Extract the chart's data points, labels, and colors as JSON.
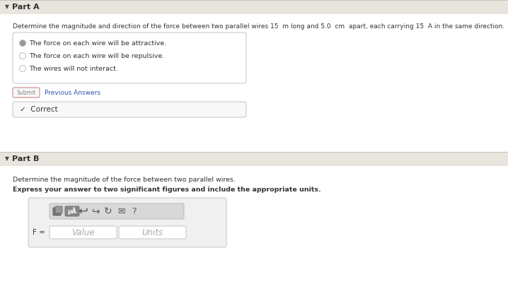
{
  "bg_color": "#ece9e3",
  "white": "#ffffff",
  "part_a_label": "Part A",
  "part_b_label": "Part B",
  "question_a": "Determine the magnitude and direction of the force between two parallel wires 15  m long and 5.0  cm  apart, each carrying 15  A in the same direction.",
  "choices": [
    "The force on each wire will be attractive.",
    "The force on each wire will be repulsive.",
    "The wires will not interact."
  ],
  "submit_label": "Submit",
  "prev_answers_label": "Previous Answers",
  "correct_label": "✓  Correct",
  "question_b1": "Determine the magnitude of the force between two parallel wires.",
  "question_b2": "Express your answer to two significant figures and include the appropriate units.",
  "f_label": "F =",
  "value_placeholder": "Value",
  "units_placeholder": "Units",
  "light_gray": "#cccccc",
  "mid_gray": "#aaaaaa",
  "dark_gray": "#555555",
  "radio_selected_color": "#999999",
  "submit_border": "#d4a0a0",
  "prev_answers_color": "#3355aa",
  "correct_check_color": "#339933",
  "text_dark": "#333333",
  "text_medium": "#555555",
  "separator_color": "#c8c4be",
  "toolbar_bg": "#d8d8d8",
  "toolbar_border": "#bbbbbb",
  "icon_sq_dark": "#666666",
  "icon_sq_light": "#999999",
  "icon_mu_bg": "#888888",
  "section_bg": "#e8e5df"
}
